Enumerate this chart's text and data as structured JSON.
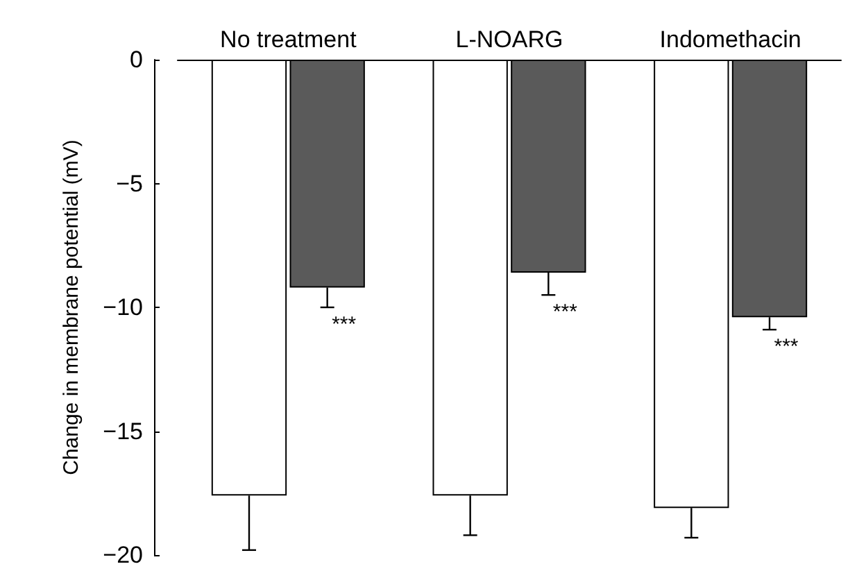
{
  "chart_data": {
    "type": "bar",
    "ylabel": "Change in membrane potential (mV)",
    "categories": [
      "No treatment",
      "L-NOARG",
      "Indomethacin"
    ],
    "series": [
      {
        "color": "#ffffff",
        "values": [
          -17.6,
          -17.6,
          -18.1
        ],
        "errors": [
          [
            -19.8,
            -17.6
          ],
          [
            -19.2,
            -17.6
          ],
          [
            -19.3,
            -18.1
          ]
        ]
      },
      {
        "color": "#5a5a5a",
        "values": [
          -9.2,
          -8.6,
          -10.4
        ],
        "errors": [
          [
            -10.0,
            -9.2
          ],
          [
            -9.5,
            -8.6
          ],
          [
            -10.9,
            -10.4
          ]
        ]
      }
    ],
    "ylim": [
      -20,
      0
    ],
    "yticks": [
      -20,
      -15,
      -10,
      -5,
      0
    ],
    "grid": false,
    "annotations": [
      {
        "text": "***",
        "x": "No treatment",
        "y": -10.7
      },
      {
        "text": "***",
        "x": "L-NOARG",
        "y": -10.2
      },
      {
        "text": "***",
        "x": "Indomethacin",
        "y": -11.6
      }
    ]
  }
}
